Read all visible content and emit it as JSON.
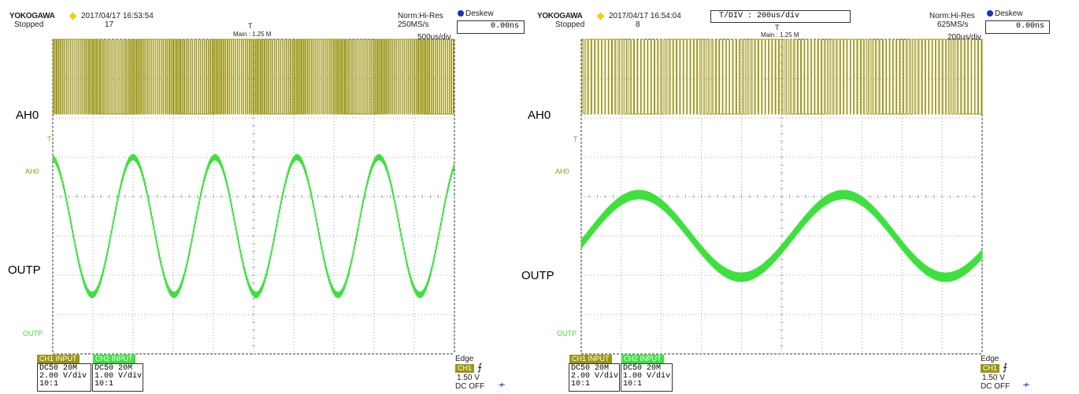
{
  "colors": {
    "ch1": "#9b9515",
    "ch2": "#3ee03e",
    "grid": "#a6a6a6",
    "deskew_dot": "#1f2fbf",
    "logo_diamond": "#f2d000",
    "badge_purple": "#7a3fb5"
  },
  "scopes": [
    {
      "brand": "YOKOGAWA",
      "datetime": "2017/04/17 16:53:54",
      "status": "Stopped",
      "acq_count": "17",
      "mode": "Norm:Hi-Res",
      "sample_rate": "250MS/s",
      "time_div": "500us/div",
      "main_points": "Main : 1.25 M",
      "trigger_pos_marker": "T",
      "deskew_label": "Deskew",
      "deskew_value": "0.00ns",
      "tdiv_box": "",
      "ch1_marker": "AH0",
      "ch2_marker": "OUTP",
      "trigger_level_marker": "T",
      "overlay_ch1": "AH0",
      "overlay_ch2": "OUTP",
      "ch1_info": {
        "tab": "CH1 INPUT",
        "coupling": "DC50 20M",
        "vdiv": "2.00 V/div",
        "probe": "10:1"
      },
      "ch2_info": {
        "tab": "CH2 INPUT",
        "coupling": "DC50 20M",
        "vdiv": "1.00 V/div",
        "probe": "10:1"
      },
      "trigger": {
        "type": "Edge",
        "source": "CH1",
        "level": "1.50 V",
        "filter": "DC OFF"
      },
      "chart_data": {
        "type": "line",
        "x_unit": "div",
        "x_range": [
          0,
          10
        ],
        "y_unit": "div",
        "y_range": [
          0,
          8
        ],
        "grid": true,
        "series": [
          {
            "name": "AH0",
            "kind": "pwm",
            "low": 6.1,
            "high": 8.0,
            "period_div": 0.05
          },
          {
            "name": "OUTP",
            "kind": "sine",
            "center": 3.25,
            "amplitude": 1.75,
            "cycles": 4.9,
            "phase": 1.7,
            "ripple": 0.08
          }
        ]
      }
    },
    {
      "brand": "YOKOGAWA",
      "datetime": "2017/04/17 16:54:04",
      "status": "Stopped",
      "acq_count": "8",
      "mode": "Norm:Hi-Res",
      "sample_rate": "625MS/s",
      "time_div": "200us/div",
      "main_points": "Main : 1.25 M",
      "trigger_pos_marker": "T",
      "deskew_label": "Deskew",
      "deskew_value": "0.00ns",
      "tdiv_box": "T/DIV  :  200us/div",
      "ch1_marker": "AH0",
      "ch2_marker": "OUTP",
      "trigger_level_marker": "T",
      "overlay_ch1": "AH0",
      "overlay_ch2": "OUTP",
      "ch1_info": {
        "tab": "CH1 INPUT",
        "coupling": "DC50 20M",
        "vdiv": "2.00 V/div",
        "probe": "10:1"
      },
      "ch2_info": {
        "tab": "CH2 INPUT",
        "coupling": "DC50 20M",
        "vdiv": "1.00 V/div",
        "probe": "10:1"
      },
      "trigger": {
        "type": "Edge",
        "source": "CH1",
        "level": "1.50 V",
        "filter": "DC OFF"
      },
      "chart_data": {
        "type": "line",
        "x_unit": "div",
        "x_range": [
          0,
          10
        ],
        "y_unit": "div",
        "y_range": [
          0,
          8
        ],
        "grid": true,
        "series": [
          {
            "name": "AH0",
            "kind": "pwm",
            "low": 6.1,
            "high": 8.0,
            "period_div": 0.085
          },
          {
            "name": "OUTP",
            "kind": "sine",
            "center": 3.0,
            "amplitude": 1.05,
            "cycles": 1.96,
            "phase": -0.2,
            "ripple": 0.12
          }
        ]
      }
    }
  ]
}
